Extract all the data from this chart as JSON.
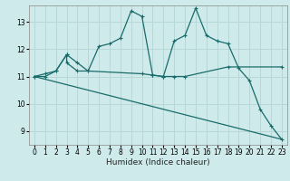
{
  "xlabel": "Humidex (Indice chaleur)",
  "background_color": "#ceeaea",
  "grid_color": "#b8d8d8",
  "line_color": "#1a6b6b",
  "xlim": [
    -0.5,
    23.5
  ],
  "ylim": [
    8.5,
    13.6
  ],
  "xticks": [
    0,
    1,
    2,
    3,
    4,
    5,
    6,
    7,
    8,
    9,
    10,
    11,
    12,
    13,
    14,
    15,
    16,
    17,
    18,
    19,
    20,
    21,
    22,
    23
  ],
  "yticks": [
    9,
    10,
    11,
    12,
    13
  ],
  "line1_x": [
    0,
    1,
    2,
    3,
    4,
    5,
    6,
    7,
    8,
    9,
    10,
    11,
    12,
    13,
    14,
    15,
    16,
    17,
    18,
    19,
    20,
    21,
    22,
    23
  ],
  "line1_y": [
    11.0,
    11.1,
    11.2,
    11.8,
    11.5,
    11.2,
    12.1,
    12.2,
    12.4,
    13.4,
    13.2,
    11.05,
    11.0,
    12.3,
    12.5,
    13.5,
    12.5,
    12.3,
    12.2,
    11.3,
    10.85,
    9.8,
    9.2,
    8.7
  ],
  "line2_x": [
    0,
    1,
    2,
    3,
    3,
    4,
    5,
    10,
    11,
    12,
    13,
    14,
    18,
    23
  ],
  "line2_y": [
    11.0,
    11.0,
    11.2,
    11.8,
    11.5,
    11.2,
    11.2,
    11.1,
    11.05,
    11.0,
    11.0,
    11.0,
    11.35,
    11.35
  ],
  "line3_x": [
    0,
    23
  ],
  "line3_y": [
    11.0,
    8.7
  ]
}
